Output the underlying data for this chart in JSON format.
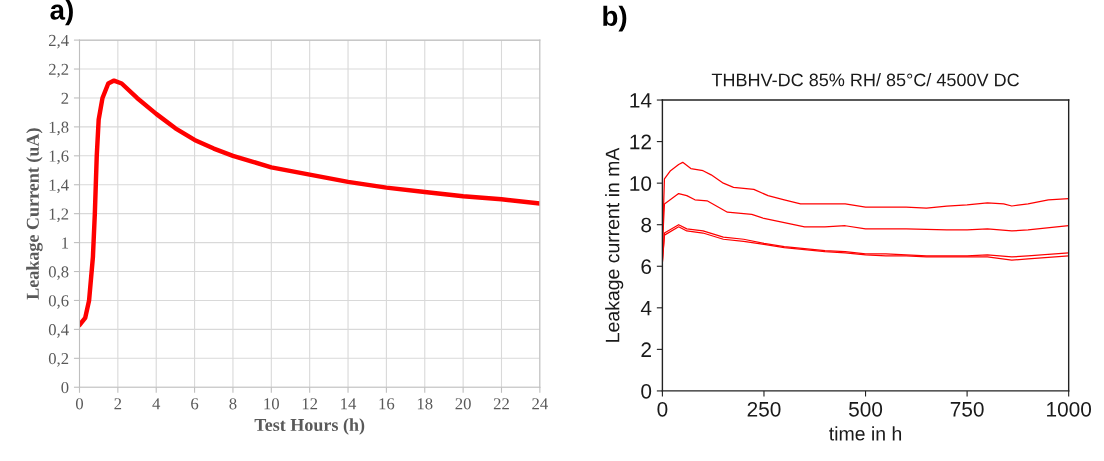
{
  "chart_data": [
    {
      "type": "line",
      "annotations": [
        "a)"
      ],
      "xlabel": "Test Hours (h)",
      "ylabel": "Leakage Current (uA)",
      "xlim": [
        0,
        24
      ],
      "ylim": [
        0,
        2.4
      ],
      "xticks": [
        0,
        2,
        4,
        6,
        8,
        10,
        12,
        14,
        16,
        18,
        20,
        22,
        24
      ],
      "yticks": [
        0,
        {
          "value": 0.2,
          "label": "0,2"
        },
        {
          "value": 0.4,
          "label": "0,4"
        },
        {
          "value": 0.6,
          "label": "0,6"
        },
        {
          "value": 0.8,
          "label": "0,8"
        },
        1,
        {
          "value": 1.2,
          "label": "1,2"
        },
        {
          "value": 1.4,
          "label": "1,4"
        },
        {
          "value": 1.6,
          "label": "1,6"
        },
        {
          "value": 1.8,
          "label": "1,8"
        },
        2,
        {
          "value": 2.2,
          "label": "2,2"
        },
        {
          "value": 2.4,
          "label": "2,4"
        }
      ],
      "grid": true,
      "series": [
        {
          "color": "#ff0000",
          "x": [
            0,
            0.3,
            0.5,
            0.7,
            0.8,
            0.9,
            1.0,
            1.2,
            1.5,
            1.8,
            2.2,
            3,
            4,
            5,
            6,
            7,
            8,
            9,
            10,
            12,
            14,
            16,
            18,
            20,
            22,
            24
          ],
          "values": [
            0.43,
            0.48,
            0.6,
            0.9,
            1.2,
            1.6,
            1.85,
            2.0,
            2.1,
            2.12,
            2.1,
            2.0,
            1.89,
            1.79,
            1.71,
            1.65,
            1.6,
            1.56,
            1.52,
            1.47,
            1.42,
            1.38,
            1.35,
            1.32,
            1.3,
            1.27
          ]
        }
      ]
    },
    {
      "type": "line",
      "annotations": [
        "b)"
      ],
      "title": "THBHV-DC 85% RH/ 85°C/ 4500V DC",
      "xlabel": "time in h",
      "ylabel": "Leakage current in mA",
      "xlim": [
        0,
        1000
      ],
      "ylim": [
        0,
        14
      ],
      "xticks": [
        0,
        250,
        500,
        750,
        1000
      ],
      "yticks": [
        0,
        2,
        4,
        6,
        8,
        10,
        12,
        14
      ],
      "series": [
        {
          "color": "#ff0000",
          "x": [
            0,
            5,
            20,
            40,
            50,
            70,
            100,
            120,
            150,
            175,
            225,
            260,
            300,
            340,
            400,
            450,
            500,
            550,
            600,
            650,
            700,
            750,
            800,
            840,
            860,
            900,
            950,
            1000
          ],
          "values": [
            7,
            10.2,
            10.6,
            10.9,
            11.0,
            10.7,
            10.6,
            10.4,
            10.0,
            9.8,
            9.7,
            9.4,
            9.2,
            9.0,
            9.0,
            9.0,
            8.85,
            8.85,
            8.85,
            8.8,
            8.9,
            8.95,
            9.05,
            9.0,
            8.9,
            9.0,
            9.2,
            9.25
          ]
        },
        {
          "color": "#ff0000",
          "x": [
            0,
            5,
            40,
            60,
            80,
            110,
            160,
            220,
            250,
            300,
            350,
            400,
            450,
            500,
            600,
            700,
            750,
            800,
            860,
            900,
            1000
          ],
          "values": [
            7,
            9.0,
            9.5,
            9.4,
            9.2,
            9.15,
            8.6,
            8.5,
            8.3,
            8.1,
            7.9,
            7.9,
            7.95,
            7.8,
            7.8,
            7.75,
            7.75,
            7.8,
            7.7,
            7.75,
            7.95
          ]
        },
        {
          "color": "#ff0000",
          "x": [
            0,
            5,
            40,
            60,
            100,
            150,
            200,
            250,
            300,
            350,
            400,
            450,
            500,
            550,
            600,
            650,
            700,
            750,
            800,
            860,
            900,
            1000
          ],
          "values": [
            6.2,
            7.6,
            8.0,
            7.8,
            7.7,
            7.4,
            7.3,
            7.1,
            6.95,
            6.85,
            6.75,
            6.7,
            6.6,
            6.6,
            6.55,
            6.5,
            6.5,
            6.5,
            6.55,
            6.45,
            6.5,
            6.65
          ]
        },
        {
          "color": "#ff0000",
          "x": [
            0,
            5,
            40,
            60,
            100,
            150,
            200,
            250,
            300,
            350,
            400,
            450,
            500,
            550,
            600,
            650,
            700,
            750,
            800,
            860,
            900,
            1000
          ],
          "values": [
            6.2,
            7.5,
            7.9,
            7.7,
            7.6,
            7.3,
            7.2,
            7.05,
            6.9,
            6.8,
            6.7,
            6.65,
            6.55,
            6.5,
            6.5,
            6.45,
            6.45,
            6.45,
            6.45,
            6.3,
            6.35,
            6.5
          ]
        }
      ]
    }
  ]
}
